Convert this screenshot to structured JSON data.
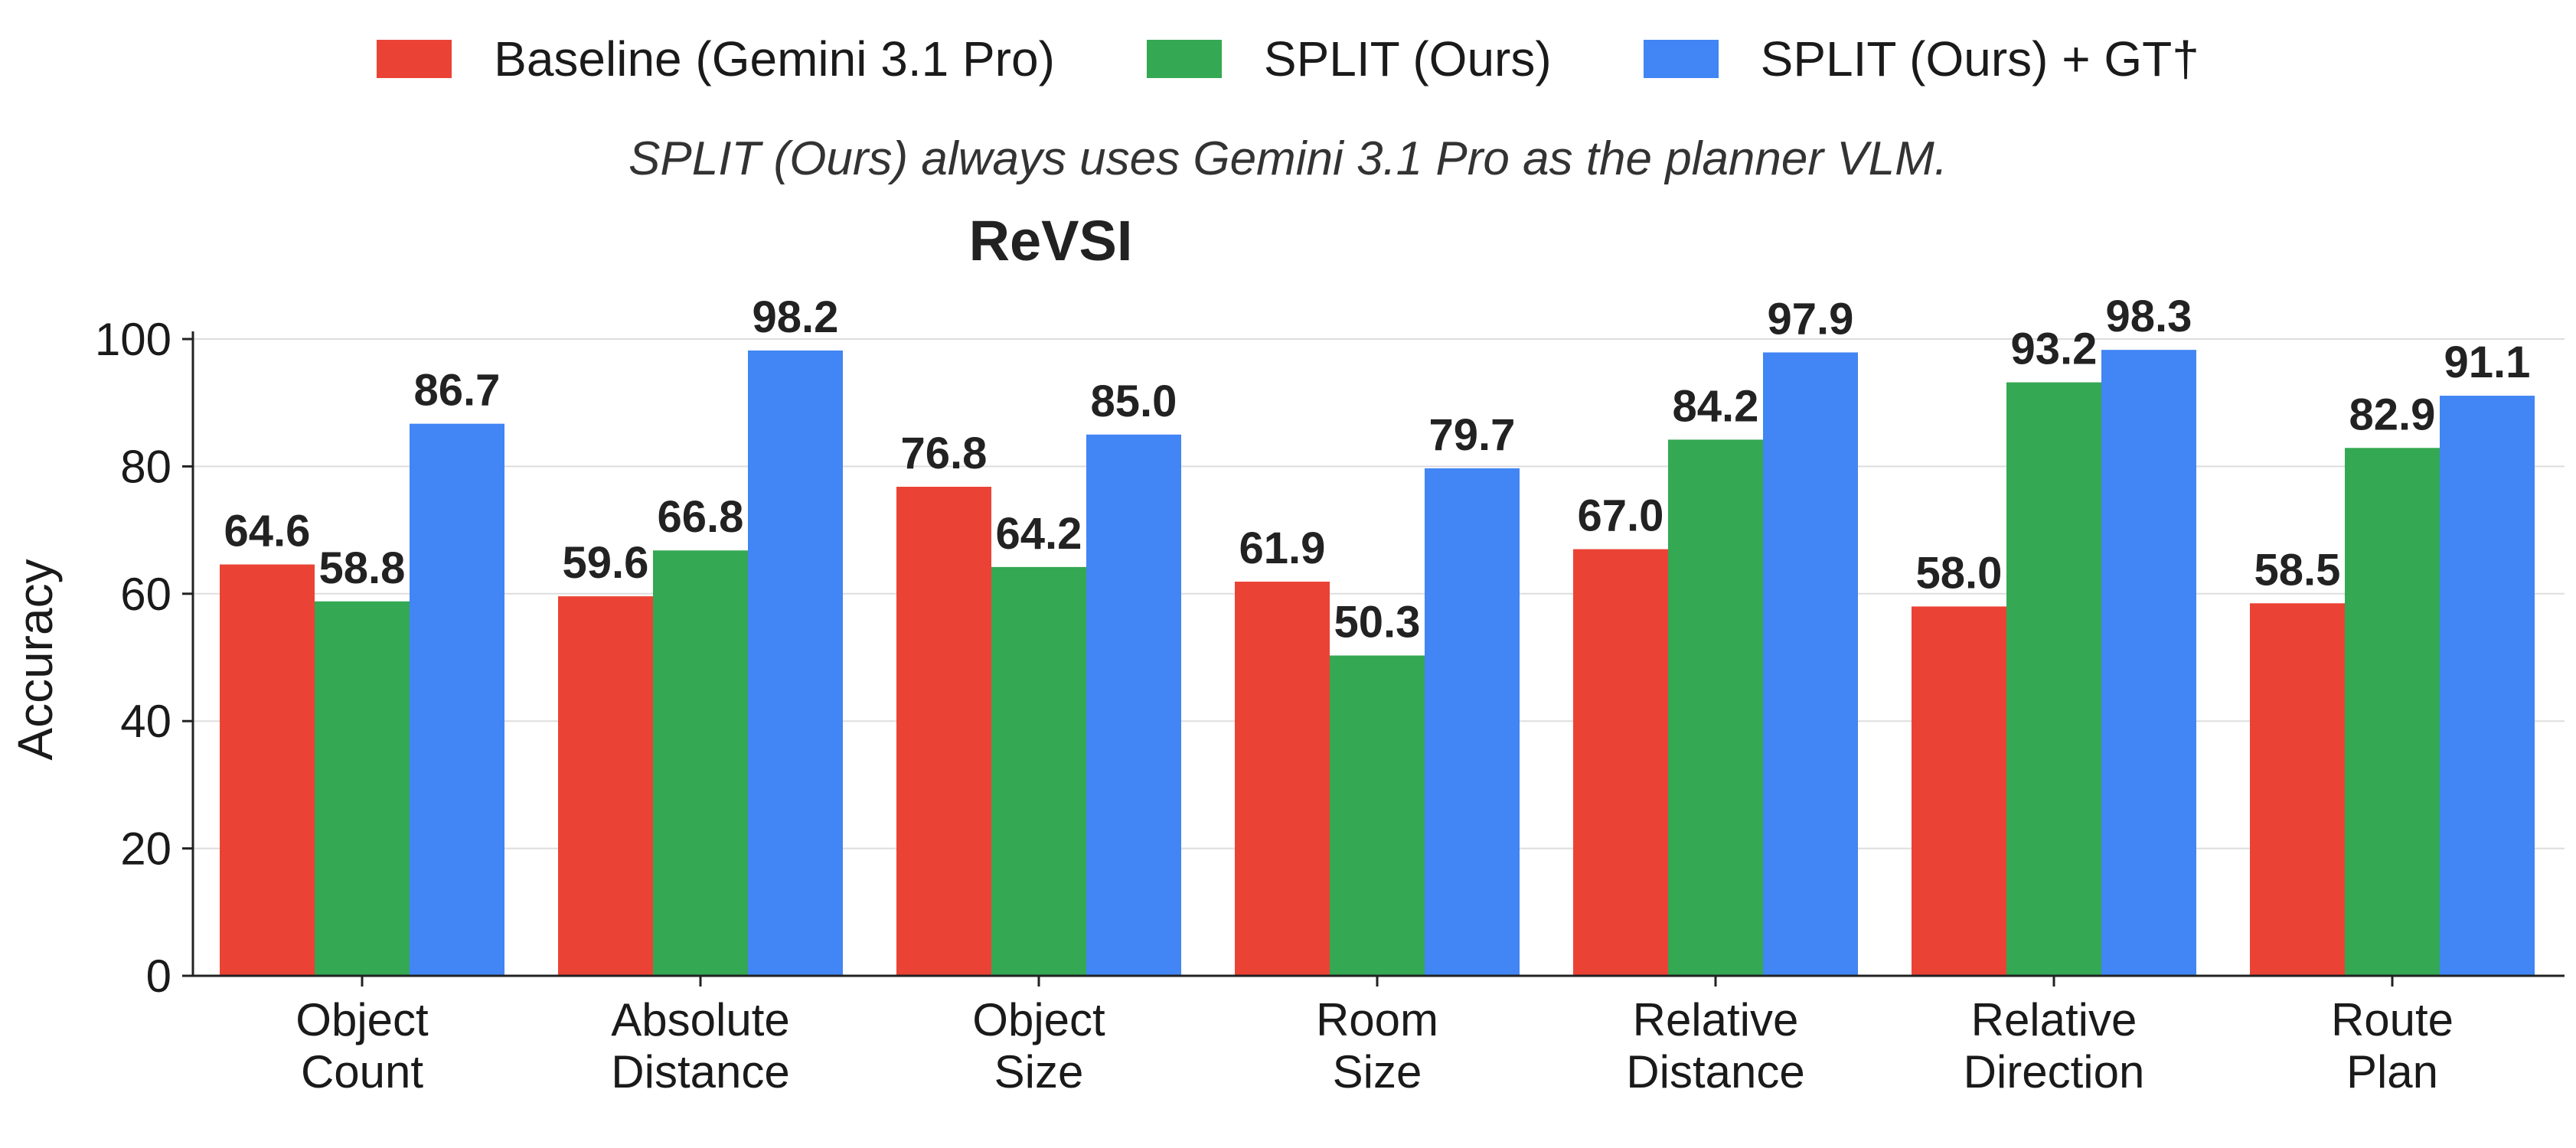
{
  "legend": {
    "items": [
      {
        "label": "Baseline (Gemini 3.1 Pro)",
        "color": "#EA4335"
      },
      {
        "label": "SPLIT (Ours)",
        "color": "#34A853"
      },
      {
        "label": "SPLIT (Ours) + GT†",
        "color": "#4285F4"
      }
    ]
  },
  "subtitle": "SPLIT (Ours) always uses Gemini 3.1 Pro as the planner VLM.",
  "chart_data": {
    "type": "bar",
    "title": "ReVSI",
    "xlabel": "",
    "ylabel": "Accuracy",
    "ylim": [
      0,
      100
    ],
    "yticks": [
      0,
      20,
      40,
      60,
      80,
      100
    ],
    "grid": true,
    "legend_position": "top",
    "categories": [
      [
        "Object",
        "Count"
      ],
      [
        "Absolute",
        "Distance"
      ],
      [
        "Object",
        "Size"
      ],
      [
        "Room",
        "Size"
      ],
      [
        "Relative",
        "Distance"
      ],
      [
        "Relative",
        "Direction"
      ],
      [
        "Route",
        "Plan"
      ]
    ],
    "series": [
      {
        "name": "Baseline (Gemini 3.1 Pro)",
        "color": "#EA4335",
        "values": [
          64.6,
          59.6,
          76.8,
          61.9,
          67.0,
          58.0,
          58.5
        ]
      },
      {
        "name": "SPLIT (Ours)",
        "color": "#34A853",
        "values": [
          58.8,
          66.8,
          64.2,
          50.3,
          84.2,
          93.2,
          82.9
        ]
      },
      {
        "name": "SPLIT (Ours) + GT†",
        "color": "#4285F4",
        "values": [
          86.7,
          98.2,
          85.0,
          79.7,
          97.9,
          98.3,
          91.1
        ]
      }
    ]
  }
}
